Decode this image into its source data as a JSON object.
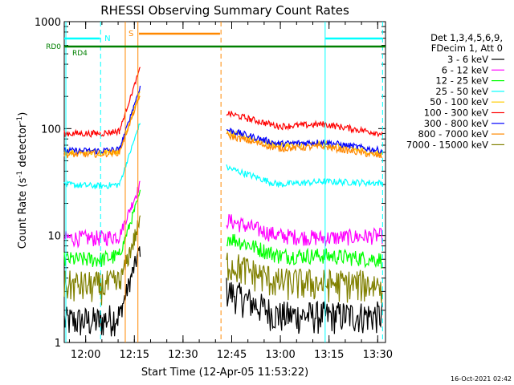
{
  "chart_data": {
    "type": "line",
    "title": "RHESSI Observing Summary Count Rates",
    "xlabel": "Start Time (12-Apr-05 11:53:22)",
    "ylabel_main": "Count Rate (s",
    "ylabel_sup1": "-1",
    "ylabel_mid": " detector",
    "ylabel_sup2": "-1",
    "ylabel_end": ")",
    "yscale": "log",
    "ylim": [
      1,
      1000
    ],
    "xlim_minutes": [
      0,
      99
    ],
    "x_ticks": [
      {
        "label": "12:00",
        "minutes": 6.6
      },
      {
        "label": "12:15",
        "minutes": 21.6
      },
      {
        "label": "12:30",
        "minutes": 36.6
      },
      {
        "label": "12:45",
        "minutes": 51.6
      },
      {
        "label": "13:00",
        "minutes": 66.6
      },
      {
        "label": "13:15",
        "minutes": 81.6
      },
      {
        "label": "13:30",
        "minutes": 96.6
      }
    ],
    "y_ticks": [
      {
        "label": "1",
        "value": 1
      },
      {
        "label": "10",
        "value": 10
      },
      {
        "label": "100",
        "value": 100
      },
      {
        "label": "1000",
        "value": 1000
      }
    ],
    "legend_header": [
      "Det 1,3,4,5,6,9,",
      "FDecim 1, Att 0"
    ],
    "series": [
      {
        "name": "3 - 6 keV",
        "color": "#000000",
        "values": [
          1.6,
          1.6,
          1.8,
          2.8,
          2.2,
          1.8,
          1.8,
          1.8
        ]
      },
      {
        "name": "6 - 12 keV",
        "color": "#ff00ff",
        "values": [
          9.5,
          9.5,
          10,
          11,
          10,
          10,
          9.5,
          10
        ]
      },
      {
        "name": "12 - 25 keV",
        "color": "#00ff00",
        "values": [
          6,
          6,
          6.5,
          9,
          7,
          6.5,
          6.5,
          6
        ]
      },
      {
        "name": "25 - 50 keV",
        "color": "#00ffff",
        "values": [
          30,
          29,
          30,
          42,
          31,
          30,
          32,
          31
        ]
      },
      {
        "name": "50 - 100 keV",
        "color": "#ffcc00",
        "values": [
          60,
          60,
          62,
          80,
          66,
          70,
          72,
          58
        ]
      },
      {
        "name": "100 - 300 keV",
        "color": "#ff0000",
        "values": [
          90,
          90,
          95,
          135,
          100,
          105,
          110,
          90
        ]
      },
      {
        "name": "300 - 800 keV",
        "color": "#0000ff",
        "values": [
          62,
          62,
          64,
          90,
          70,
          72,
          75,
          62
        ]
      },
      {
        "name": "800 - 7000 keV",
        "color": "#ff8800",
        "values": [
          57,
          58,
          60,
          75,
          62,
          65,
          68,
          55
        ]
      },
      {
        "name": "7000 - 15000 keV",
        "color": "#808000",
        "values": [
          3.5,
          3.4,
          3.6,
          5,
          4,
          3.7,
          3.6,
          3.5
        ]
      }
    ],
    "flags": [
      {
        "label": "N",
        "color": "#00ffff"
      },
      {
        "label": "S",
        "color": "#ff8800"
      },
      {
        "label": "RD0",
        "color": "#008000"
      },
      {
        "label": "RD4",
        "color": "#008000"
      }
    ],
    "gaps": [
      "saa",
      "night"
    ],
    "footer_date": "16-Oct-2021 02:42"
  }
}
